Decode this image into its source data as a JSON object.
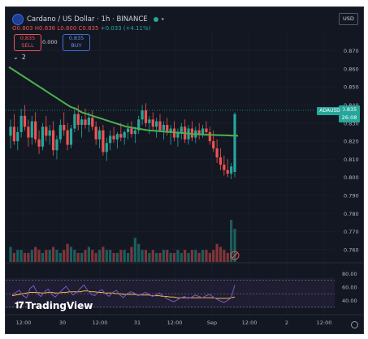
{
  "header": {
    "symbol_title": "Cardano / US Dollar · 1h · BINANCE",
    "ohlc": {
      "o": "O0.803",
      "h": "H0.836",
      "l": "L0.800",
      "c": "C0.835",
      "chg": "+0.033 (+4.11%)"
    },
    "sell_price": "0.835",
    "sell_label": "SELL",
    "buy_price": "0.835",
    "buy_label": "BUY",
    "spread": "0.000",
    "indicator_count": "2",
    "currency": "USD"
  },
  "price_axis": {
    "ticks": [
      "0.870",
      "0.860",
      "0.850",
      "0.840",
      "0.830",
      "0.820",
      "0.810",
      "0.800",
      "0.790",
      "0.780",
      "0.770",
      "0.760"
    ],
    "ticker": "ADAUSD",
    "last_price": "0.835",
    "countdown": "26:08"
  },
  "rsi_axis": {
    "ticks": [
      "80.00",
      "60.00",
      "40.00"
    ]
  },
  "time_axis": {
    "ticks": [
      "12:00",
      "30",
      "12:00",
      "31",
      "12:00",
      "Sep",
      "12:00",
      "2",
      "12:00"
    ]
  },
  "branding": "TradingView",
  "colors": {
    "up": "#26a69a",
    "down": "#ef5350",
    "ma": "#4caf50",
    "rsi": "#7e57c2",
    "rsi_ma": "#f0c040",
    "bg": "#131722"
  },
  "chart_data": {
    "type": "candlestick",
    "y_range": [
      0.755,
      0.877
    ],
    "candles": [
      [
        0.823,
        0.832,
        0.816,
        0.828
      ],
      [
        0.828,
        0.835,
        0.818,
        0.82
      ],
      [
        0.82,
        0.828,
        0.815,
        0.825
      ],
      [
        0.825,
        0.838,
        0.822,
        0.834
      ],
      [
        0.834,
        0.84,
        0.826,
        0.828
      ],
      [
        0.828,
        0.832,
        0.817,
        0.822
      ],
      [
        0.822,
        0.834,
        0.818,
        0.831
      ],
      [
        0.831,
        0.836,
        0.819,
        0.821
      ],
      [
        0.821,
        0.826,
        0.813,
        0.817
      ],
      [
        0.817,
        0.83,
        0.815,
        0.828
      ],
      [
        0.828,
        0.834,
        0.82,
        0.823
      ],
      [
        0.823,
        0.829,
        0.818,
        0.826
      ],
      [
        0.826,
        0.831,
        0.812,
        0.815
      ],
      [
        0.815,
        0.823,
        0.81,
        0.821
      ],
      [
        0.821,
        0.832,
        0.819,
        0.829
      ],
      [
        0.829,
        0.836,
        0.823,
        0.826
      ],
      [
        0.826,
        0.83,
        0.815,
        0.818
      ],
      [
        0.818,
        0.829,
        0.816,
        0.827
      ],
      [
        0.827,
        0.838,
        0.825,
        0.835
      ],
      [
        0.835,
        0.84,
        0.826,
        0.829
      ],
      [
        0.829,
        0.834,
        0.822,
        0.832
      ],
      [
        0.832,
        0.838,
        0.827,
        0.829
      ],
      [
        0.829,
        0.836,
        0.825,
        0.833
      ],
      [
        0.833,
        0.837,
        0.826,
        0.828
      ],
      [
        0.828,
        0.831,
        0.818,
        0.821
      ],
      [
        0.821,
        0.828,
        0.816,
        0.826
      ],
      [
        0.826,
        0.829,
        0.812,
        0.814
      ],
      [
        0.814,
        0.822,
        0.809,
        0.819
      ],
      [
        0.819,
        0.826,
        0.815,
        0.823
      ],
      [
        0.823,
        0.828,
        0.819,
        0.821
      ],
      [
        0.821,
        0.825,
        0.816,
        0.824
      ],
      [
        0.824,
        0.83,
        0.82,
        0.822
      ],
      [
        0.822,
        0.826,
        0.818,
        0.825
      ],
      [
        0.825,
        0.83,
        0.821,
        0.827
      ],
      [
        0.827,
        0.831,
        0.822,
        0.824
      ],
      [
        0.824,
        0.828,
        0.819,
        0.826
      ],
      [
        0.826,
        0.834,
        0.824,
        0.832
      ],
      [
        0.832,
        0.84,
        0.829,
        0.837
      ],
      [
        0.837,
        0.841,
        0.828,
        0.83
      ],
      [
        0.83,
        0.834,
        0.824,
        0.832
      ],
      [
        0.832,
        0.836,
        0.826,
        0.828
      ],
      [
        0.828,
        0.833,
        0.822,
        0.831
      ],
      [
        0.831,
        0.835,
        0.825,
        0.826
      ],
      [
        0.826,
        0.831,
        0.821,
        0.829
      ],
      [
        0.829,
        0.833,
        0.823,
        0.825
      ],
      [
        0.825,
        0.829,
        0.818,
        0.827
      ],
      [
        0.827,
        0.831,
        0.82,
        0.822
      ],
      [
        0.822,
        0.827,
        0.817,
        0.825
      ],
      [
        0.825,
        0.83,
        0.821,
        0.828
      ],
      [
        0.828,
        0.832,
        0.819,
        0.821
      ],
      [
        0.821,
        0.829,
        0.818,
        0.827
      ],
      [
        0.827,
        0.831,
        0.82,
        0.822
      ],
      [
        0.822,
        0.828,
        0.819,
        0.826
      ],
      [
        0.826,
        0.83,
        0.821,
        0.824
      ],
      [
        0.824,
        0.829,
        0.822,
        0.827
      ],
      [
        0.827,
        0.831,
        0.823,
        0.825
      ],
      [
        0.825,
        0.828,
        0.818,
        0.82
      ],
      [
        0.82,
        0.826,
        0.814,
        0.816
      ],
      [
        0.816,
        0.821,
        0.808,
        0.811
      ],
      [
        0.811,
        0.816,
        0.804,
        0.807
      ],
      [
        0.807,
        0.812,
        0.801,
        0.804
      ],
      [
        0.804,
        0.81,
        0.8,
        0.802
      ],
      [
        0.802,
        0.808,
        0.799,
        0.806
      ],
      [
        0.803,
        0.836,
        0.8,
        0.835
      ]
    ],
    "volumes": [
      5,
      3,
      4,
      4,
      3,
      3,
      4,
      5,
      4,
      3,
      4,
      4,
      5,
      4,
      3,
      4,
      6,
      5,
      4,
      3,
      3,
      4,
      5,
      4,
      3,
      4,
      5,
      4,
      4,
      3,
      3,
      4,
      4,
      3,
      5,
      8,
      6,
      4,
      4,
      3,
      4,
      3,
      3,
      4,
      4,
      3,
      3,
      4,
      3,
      4,
      3,
      4,
      4,
      3,
      4,
      4,
      3,
      4,
      6,
      5,
      4,
      3,
      14,
      11
    ],
    "ma_line": [
      0.861,
      0.859,
      0.857,
      0.855,
      0.853,
      0.851,
      0.849,
      0.847,
      0.845,
      0.843,
      0.841,
      0.839,
      0.838,
      0.836,
      0.835,
      0.834,
      0.833,
      0.832,
      0.831,
      0.83,
      0.829,
      0.828,
      0.8275,
      0.827,
      0.8265,
      0.826,
      0.8258,
      0.8255,
      0.8252,
      0.825,
      0.8248,
      0.8245,
      0.8243,
      0.824,
      0.8238,
      0.8236,
      0.8235,
      0.8234,
      0.8233,
      0.8232,
      0.8231,
      0.823
    ],
    "rsi": {
      "y_range": [
        20,
        90
      ],
      "rsi_line": [
        48,
        52,
        55,
        47,
        44,
        58,
        62,
        50,
        46,
        53,
        57,
        49,
        45,
        51,
        56,
        61,
        54,
        48,
        52,
        58,
        63,
        55,
        49,
        47,
        53,
        56,
        50,
        46,
        52,
        55,
        48,
        44,
        50,
        53,
        51,
        47,
        49,
        52,
        50,
        46,
        48,
        51,
        47,
        43,
        40,
        38,
        41,
        44,
        46,
        43,
        45,
        48,
        46,
        44,
        47,
        49,
        45,
        42,
        39,
        37,
        40,
        44,
        63
      ],
      "rsi_ma": [
        47,
        48,
        49,
        50,
        51,
        52,
        52,
        52,
        51,
        51,
        52,
        52,
        51,
        51,
        52,
        52,
        53,
        53,
        53,
        53,
        54,
        54,
        53,
        53,
        52,
        52,
        51,
        51,
        51,
        50,
        50,
        49,
        49,
        49,
        49,
        48,
        48,
        48,
        48,
        47,
        47,
        47,
        46,
        46,
        45,
        45,
        44,
        44,
        44,
        44,
        44,
        44,
        44,
        44,
        44,
        44,
        44,
        43,
        43,
        43,
        43,
        44,
        45
      ],
      "bands": [
        70,
        50,
        30
      ]
    }
  }
}
